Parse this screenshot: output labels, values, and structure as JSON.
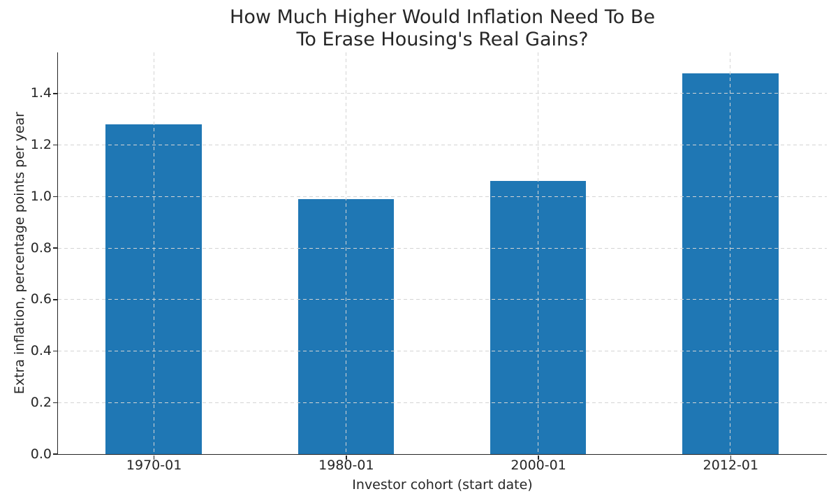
{
  "chart_data": {
    "type": "bar",
    "title": "How Much Higher Would Inflation Need To Be\nTo Erase Housing's Real Gains?",
    "xlabel": "Investor cohort (start date)",
    "ylabel": "Extra inflation, percentage points per year",
    "categories": [
      "1970-01",
      "1980-01",
      "2000-01",
      "2012-01"
    ],
    "values": [
      1.28,
      0.99,
      1.06,
      1.48
    ],
    "yticks": [
      0.0,
      0.2,
      0.4,
      0.6,
      0.8,
      1.0,
      1.2,
      1.4
    ],
    "ytick_decimals": 1,
    "ylim": [
      0,
      1.56
    ],
    "bar_width_fraction": 0.5,
    "grid": "both-dashed-on-top",
    "legend": "none",
    "colors": {
      "bar": "#1f77b4",
      "grid": "#d4d4d4",
      "text": "#262626",
      "spine": "#262626",
      "background": "#ffffff"
    }
  }
}
